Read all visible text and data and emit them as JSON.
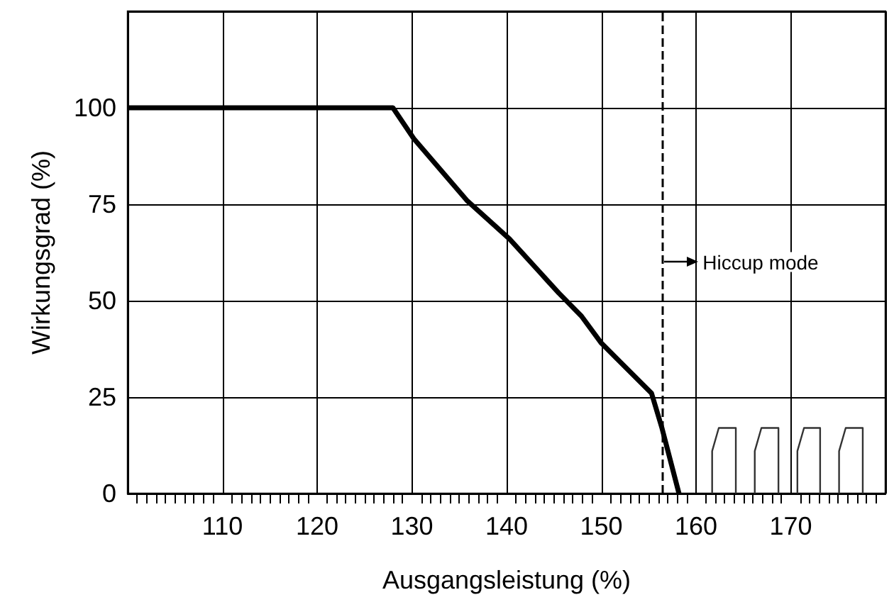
{
  "chart_data": {
    "type": "line",
    "xlabel": "Ausgangsleistung (%)",
    "ylabel": "Wirkungsgrad (%)",
    "xlim": [
      100,
      180
    ],
    "xticks": [
      110,
      120,
      130,
      140,
      150,
      160,
      170
    ],
    "ylim": [
      0,
      125
    ],
    "yticks": [
      0,
      25,
      50,
      75,
      100
    ],
    "grid": true,
    "marker": "none",
    "series": [
      {
        "color": "#000000",
        "x": [
          100,
          128,
          130.2,
          135.8,
          140.3,
          145.5,
          147.9,
          150,
          155.3,
          156.4,
          158.2
        ],
        "values": [
          100,
          100,
          92,
          76,
          66,
          52,
          46,
          39,
          26,
          17,
          0
        ]
      },
      {
        "color": "#333333",
        "x": [
          161.7,
          161.7,
          162.4,
          164.2,
          164.2,
          165,
          166.2,
          166.2,
          166.9,
          168.7,
          168.7,
          169.5,
          170.7,
          170.7,
          171.4,
          173.1,
          173.1,
          174,
          175.1,
          175.1,
          175.8,
          177.6,
          177.6
        ],
        "values": [
          0,
          11,
          17,
          17,
          0,
          null,
          0,
          11,
          17,
          17,
          0,
          null,
          0,
          11,
          17,
          17,
          0,
          null,
          0,
          11,
          17,
          17,
          0
        ]
      }
    ],
    "ref_lines": [
      {
        "axis": "x",
        "value": 156.5,
        "line_style": "dashed",
        "color": "#000000"
      }
    ],
    "annotations": [
      {
        "text": "Hiccup mode",
        "x": 156.5,
        "y": 60
      }
    ]
  }
}
